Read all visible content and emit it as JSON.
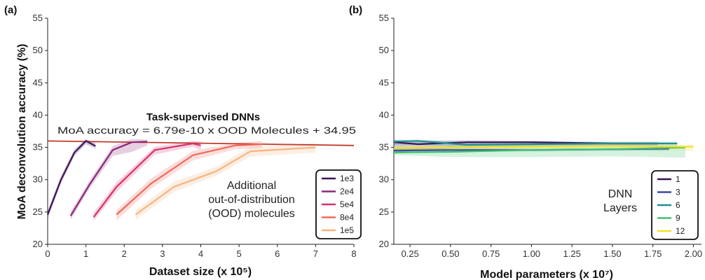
{
  "chart_data": [
    {
      "panel": "(a)",
      "type": "line",
      "xlabel": "Dataset size (x 10⁵)",
      "ylabel": "MoA deconvolution accuracy (%)",
      "xlim": [
        0,
        8
      ],
      "ylim": [
        20,
        55
      ],
      "xticks": [
        "0",
        "1",
        "2",
        "3",
        "4",
        "5",
        "6",
        "7",
        "8"
      ],
      "yticks": [
        "20",
        "25",
        "30",
        "35",
        "40",
        "45",
        "50",
        "55"
      ],
      "grid": false,
      "legend_position": "bottom-right",
      "annotations": {
        "heading": "Task-supervised DNNs",
        "fit": "MoA accuracy = 6.79e-10 x OOD Molecules + 34.95",
        "note_lines": [
          "Additional",
          "out-of-distribution",
          "(OOD) molecules"
        ]
      },
      "fit_line": {
        "x": [
          0,
          8
        ],
        "y": [
          36.0,
          35.3
        ]
      },
      "series": [
        {
          "name": "1e3",
          "color": "#3d1457",
          "x": [
            0,
            0.35,
            0.7,
            1.0,
            1.25
          ],
          "y": [
            24.6,
            30.0,
            34.2,
            36.0,
            35.2
          ],
          "lower": [
            23.9,
            29.5,
            33.7,
            35.5,
            34.8
          ],
          "upper": [
            25.2,
            30.6,
            34.7,
            36.3,
            35.7
          ]
        },
        {
          "name": "2e4",
          "color": "#8a2878",
          "x": [
            0.6,
            1.1,
            1.7,
            2.2,
            2.6
          ],
          "y": [
            24.4,
            29.3,
            34.6,
            35.8,
            35.9
          ],
          "lower": [
            23.8,
            28.7,
            33.7,
            34.3,
            35.3
          ],
          "upper": [
            25.0,
            29.9,
            35.2,
            36.3,
            36.2
          ]
        },
        {
          "name": "5e4",
          "color": "#d6336a",
          "x": [
            1.2,
            1.8,
            2.8,
            3.8,
            4.0
          ],
          "y": [
            24.2,
            28.9,
            34.6,
            35.6,
            35.3
          ],
          "lower": [
            23.6,
            28.1,
            33.9,
            35.1,
            34.6
          ],
          "upper": [
            24.9,
            29.6,
            35.1,
            36.0,
            35.9
          ]
        },
        {
          "name": "8e4",
          "color": "#ef6a5c",
          "x": [
            1.8,
            2.7,
            3.8,
            4.9,
            5.6
          ],
          "y": [
            24.6,
            29.4,
            33.8,
            35.3,
            35.5
          ],
          "lower": [
            23.7,
            28.6,
            33.0,
            34.7,
            34.9
          ],
          "upper": [
            25.3,
            30.2,
            34.5,
            35.7,
            36.0
          ]
        },
        {
          "name": "1e5",
          "color": "#f7b37f",
          "x": [
            2.3,
            3.3,
            4.4,
            5.3,
            7.0
          ],
          "y": [
            24.6,
            28.9,
            31.3,
            34.4,
            35.0
          ],
          "lower": [
            23.8,
            28.1,
            30.6,
            33.6,
            34.2
          ],
          "upper": [
            25.3,
            29.7,
            32.0,
            35.1,
            35.7
          ]
        }
      ]
    },
    {
      "panel": "(b)",
      "type": "line",
      "xlabel": "Model parameters (x 10⁷)",
      "ylabel": "",
      "xlim": [
        0.15,
        2.05
      ],
      "ylim": [
        20,
        55
      ],
      "xticks": [
        "0.25",
        "0.50",
        "0.75",
        "1.00",
        "1.25",
        "1.50",
        "1.75",
        "2.00"
      ],
      "yticks": [
        "20",
        "25",
        "30",
        "35",
        "40",
        "45",
        "50",
        "55"
      ],
      "grid": false,
      "legend_position": "bottom-right",
      "annotations": {
        "note_lines": [
          "DNN",
          "Layers"
        ]
      },
      "series": [
        {
          "name": "1",
          "color": "#3a1255",
          "x": [
            0.15,
            0.3,
            0.6,
            1.0,
            1.5,
            1.78
          ],
          "y": [
            35.8,
            35.5,
            35.8,
            35.8,
            35.6,
            35.6
          ],
          "lower": [
            34.2,
            34.5,
            35.0,
            35.2,
            35.2,
            35.3
          ],
          "upper": [
            36.1,
            36.0,
            36.1,
            36.0,
            35.8,
            35.8
          ]
        },
        {
          "name": "3",
          "color": "#3b4a9c",
          "x": [
            0.15,
            0.5,
            1.0,
            1.5,
            1.85
          ],
          "y": [
            34.5,
            34.6,
            34.6,
            34.7,
            34.8
          ],
          "lower": [
            34.2,
            34.3,
            34.4,
            34.5,
            34.5
          ],
          "upper": [
            34.8,
            34.9,
            34.8,
            34.9,
            35.0
          ]
        },
        {
          "name": "6",
          "color": "#21908c",
          "x": [
            0.15,
            0.3,
            0.6,
            1.0,
            1.5,
            1.9
          ],
          "y": [
            35.9,
            36.0,
            35.4,
            35.5,
            35.6,
            35.6
          ],
          "lower": [
            35.3,
            35.4,
            35.0,
            35.1,
            35.2,
            35.1
          ],
          "upper": [
            36.2,
            36.2,
            35.8,
            35.8,
            35.9,
            35.9
          ]
        },
        {
          "name": "9",
          "color": "#3ec46d",
          "x": [
            0.15,
            0.5,
            1.0,
            1.5,
            1.95
          ],
          "y": [
            34.2,
            34.3,
            34.6,
            34.7,
            35.0
          ],
          "lower": [
            33.8,
            33.5,
            33.5,
            33.6,
            33.4
          ],
          "upper": [
            34.8,
            35.0,
            35.1,
            35.1,
            35.2
          ]
        },
        {
          "name": "12",
          "color": "#f2e02e",
          "x": [
            0.15,
            0.5,
            1.0,
            1.5,
            2.0
          ],
          "y": [
            34.9,
            35.0,
            35.1,
            35.2,
            35.1
          ],
          "lower": [
            34.6,
            34.7,
            34.8,
            34.9,
            34.4
          ],
          "upper": [
            35.1,
            35.3,
            35.4,
            35.5,
            35.4
          ]
        }
      ]
    }
  ]
}
